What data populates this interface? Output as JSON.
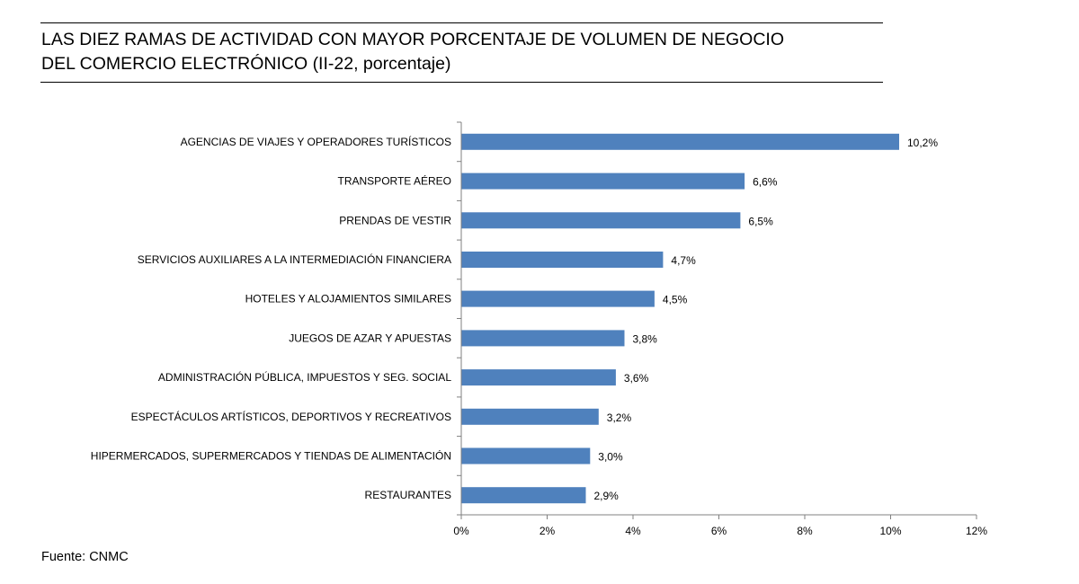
{
  "header": {
    "title_line1": "LAS DIEZ RAMAS DE ACTIVIDAD CON MAYOR PORCENTAJE DE VOLUMEN DE NEGOCIO",
    "title_line2": "DEL COMERCIO ELECTRÓNICO (II-22, porcentaje)"
  },
  "footer": {
    "source": "Fuente: CNMC"
  },
  "colors": {
    "bar": "#4F81BD",
    "axis": "#808080"
  },
  "chart_data": {
    "type": "bar",
    "orientation": "horizontal",
    "title": "LAS DIEZ RAMAS DE ACTIVIDAD CON MAYOR PORCENTAJE DE VOLUMEN DE NEGOCIO DEL COMERCIO ELECTRÓNICO (II-22, porcentaje)",
    "xlabel": "",
    "ylabel": "",
    "xlim": [
      0,
      12
    ],
    "ticks": [
      0,
      2,
      4,
      6,
      8,
      10,
      12
    ],
    "tick_labels": [
      "0%",
      "2%",
      "4%",
      "6%",
      "8%",
      "10%",
      "12%"
    ],
    "grid": false,
    "categories": [
      "AGENCIAS DE VIAJES Y OPERADORES TURÍSTICOS",
      "TRANSPORTE AÉREO",
      "PRENDAS DE VESTIR",
      "SERVICIOS AUXILIARES A LA INTERMEDIACIÓN FINANCIERA",
      "HOTELES  Y ALOJAMIENTOS SIMILARES",
      "JUEGOS DE AZAR Y APUESTAS",
      "ADMINISTRACIÓN PÚBLICA, IMPUESTOS Y SEG. SOCIAL",
      "ESPECTÁCULOS ARTÍSTICOS, DEPORTIVOS Y RECREATIVOS",
      "HIPERMERCADOS, SUPERMERCADOS Y TIENDAS DE ALIMENTACIÓN",
      "RESTAURANTES"
    ],
    "values": [
      10.2,
      6.6,
      6.5,
      4.7,
      4.5,
      3.8,
      3.6,
      3.2,
      3.0,
      2.9
    ],
    "value_labels": [
      "10,2%",
      "6,6%",
      "6,5%",
      "4,7%",
      "4,5%",
      "3,8%",
      "3,6%",
      "3,2%",
      "3,0%",
      "2,9%"
    ]
  }
}
